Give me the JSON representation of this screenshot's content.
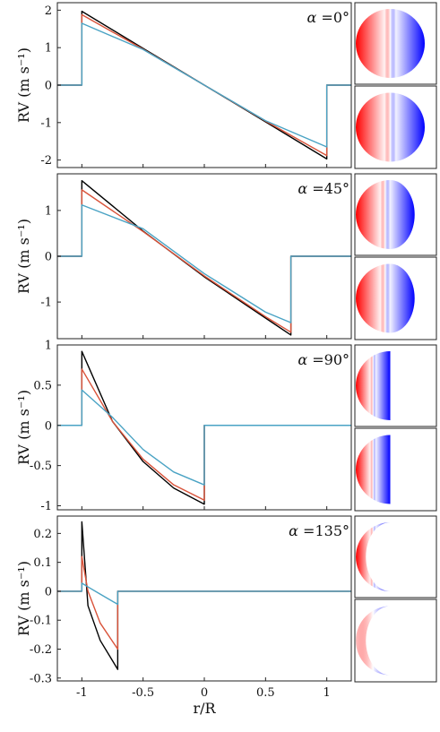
{
  "chart_data": {
    "type": "line",
    "xlabel": "r/R",
    "xlim": [
      -1.2,
      1.2
    ],
    "xticks": [
      "-1",
      "-0.5",
      "0",
      "0.5",
      "1"
    ],
    "series_colors": [
      "#000000",
      "#d9533a",
      "#4aa3c4"
    ],
    "disk_colormap": {
      "approach": "#ff0000",
      "recede": "#0000ff",
      "center": "#ffffff"
    },
    "panels": [
      {
        "annotation": "α =0°",
        "alpha_symbol": "α",
        "alpha_value": "=0°",
        "ylabel": "RV (m s⁻¹)",
        "ylim": [
          -2.2,
          2.2
        ],
        "yticks": [
          "-2",
          "-1",
          "0",
          "1",
          "2"
        ],
        "tick_values": [
          -2,
          -1,
          0,
          1,
          2
        ],
        "transit_x": [
          -1,
          1
        ],
        "series": [
          {
            "x": [
              -1.2,
              -1.0,
              -1.0,
              -0.5,
              0.0,
              0.5,
              1.0,
              1.0,
              1.2
            ],
            "y": [
              0,
              0,
              1.97,
              0.98,
              0.0,
              -0.98,
              -1.97,
              0,
              0
            ]
          },
          {
            "x": [
              -1.2,
              -1.0,
              -1.0,
              -0.5,
              0.0,
              0.5,
              1.0,
              1.0,
              1.2
            ],
            "y": [
              0,
              0,
              1.88,
              0.96,
              0.0,
              -0.96,
              -1.88,
              0,
              0
            ]
          },
          {
            "x": [
              -1.2,
              -1.0,
              -1.0,
              -0.5,
              0.0,
              0.5,
              1.0,
              1.0,
              1.2
            ],
            "y": [
              0,
              0,
              1.65,
              0.95,
              0.0,
              -0.95,
              -1.65,
              0,
              0
            ]
          }
        ],
        "disks": [
          {
            "shape": "full",
            "phase": 0
          },
          {
            "shape": "full",
            "phase": 0
          }
        ]
      },
      {
        "annotation": "α =45°",
        "alpha_symbol": "α",
        "alpha_value": "=45°",
        "ylabel": "RV (m s⁻¹)",
        "ylim": [
          -1.8,
          1.8
        ],
        "yticks": [
          "-1",
          "0",
          "1"
        ],
        "tick_values": [
          -1,
          0,
          1
        ],
        "transit_x": [
          -1,
          0.707
        ],
        "series": [
          {
            "x": [
              -1.2,
              -1.0,
              -1.0,
              -0.5,
              0.0,
              0.5,
              0.707,
              0.707,
              1.2
            ],
            "y": [
              0,
              0,
              1.65,
              0.55,
              -0.45,
              -1.35,
              -1.72,
              0,
              0
            ]
          },
          {
            "x": [
              -1.2,
              -1.0,
              -1.0,
              -0.5,
              0.0,
              0.5,
              0.707,
              0.707,
              1.2
            ],
            "y": [
              0,
              0,
              1.45,
              0.54,
              -0.43,
              -1.32,
              -1.66,
              0,
              0
            ]
          },
          {
            "x": [
              -1.2,
              -1.0,
              -1.0,
              -0.5,
              0.0,
              0.5,
              0.707,
              0.707,
              1.2
            ],
            "y": [
              0,
              0,
              1.12,
              0.6,
              -0.38,
              -1.22,
              -1.45,
              0,
              0
            ]
          }
        ],
        "disks": [
          {
            "shape": "crescent",
            "phase": 45
          },
          {
            "shape": "crescent",
            "phase": 45
          }
        ]
      },
      {
        "annotation": "α =90°",
        "alpha_symbol": "α",
        "alpha_value": "=90°",
        "ylabel": "RV (m s⁻¹)",
        "ylim": [
          -1.05,
          1.0
        ],
        "yticks": [
          "-1",
          "-0.5",
          "0",
          "0.5",
          "1"
        ],
        "tick_values": [
          -1,
          -0.5,
          0,
          0.5,
          1
        ],
        "transit_x": [
          -1,
          0
        ],
        "series": [
          {
            "x": [
              -1.2,
              -1.0,
              -1.0,
              -0.75,
              -0.5,
              -0.25,
              0.0,
              0.0,
              1.2
            ],
            "y": [
              0,
              0,
              0.92,
              0.05,
              -0.45,
              -0.78,
              -0.98,
              0,
              0
            ]
          },
          {
            "x": [
              -1.2,
              -1.0,
              -1.0,
              -0.75,
              -0.5,
              -0.25,
              0.0,
              0.0,
              1.2
            ],
            "y": [
              0,
              0,
              0.7,
              0.05,
              -0.42,
              -0.74,
              -0.93,
              0,
              0
            ]
          },
          {
            "x": [
              -1.2,
              -1.0,
              -1.0,
              -0.75,
              -0.5,
              -0.25,
              0.0,
              0.0,
              1.2
            ],
            "y": [
              0,
              0,
              0.44,
              0.1,
              -0.3,
              -0.58,
              -0.74,
              0,
              0
            ]
          }
        ],
        "disks": [
          {
            "shape": "crescent",
            "phase": 90
          },
          {
            "shape": "crescent",
            "phase": 90
          }
        ]
      },
      {
        "annotation": "α =135°",
        "alpha_symbol": "α",
        "alpha_value": "=135°",
        "ylabel": "RV (m s⁻¹)",
        "ylim": [
          -0.31,
          0.26
        ],
        "yticks": [
          "-0.3",
          "-0.2",
          "-0.1",
          "0",
          "0.1",
          "0.2"
        ],
        "tick_values": [
          -0.3,
          -0.2,
          -0.1,
          0,
          0.1,
          0.2
        ],
        "transit_x": [
          -1,
          -0.707
        ],
        "series": [
          {
            "x": [
              -1.2,
              -1.0,
              -1.0,
              -0.95,
              -0.85,
              -0.707,
              -0.707,
              1.2
            ],
            "y": [
              0,
              0,
              0.24,
              -0.05,
              -0.17,
              -0.27,
              0,
              0
            ]
          },
          {
            "x": [
              -1.2,
              -1.0,
              -1.0,
              -0.95,
              -0.85,
              -0.707,
              -0.707,
              1.2
            ],
            "y": [
              0,
              0,
              0.12,
              0.0,
              -0.11,
              -0.2,
              0,
              0
            ]
          },
          {
            "x": [
              -1.2,
              -1.0,
              -1.0,
              -0.95,
              -0.85,
              -0.707,
              -0.707,
              1.2
            ],
            "y": [
              0,
              0,
              0.028,
              0.015,
              -0.01,
              -0.045,
              0,
              0
            ]
          }
        ],
        "disks": [
          {
            "shape": "crescent",
            "phase": 135
          },
          {
            "shape": "crescent",
            "phase": 135
          }
        ]
      }
    ]
  }
}
